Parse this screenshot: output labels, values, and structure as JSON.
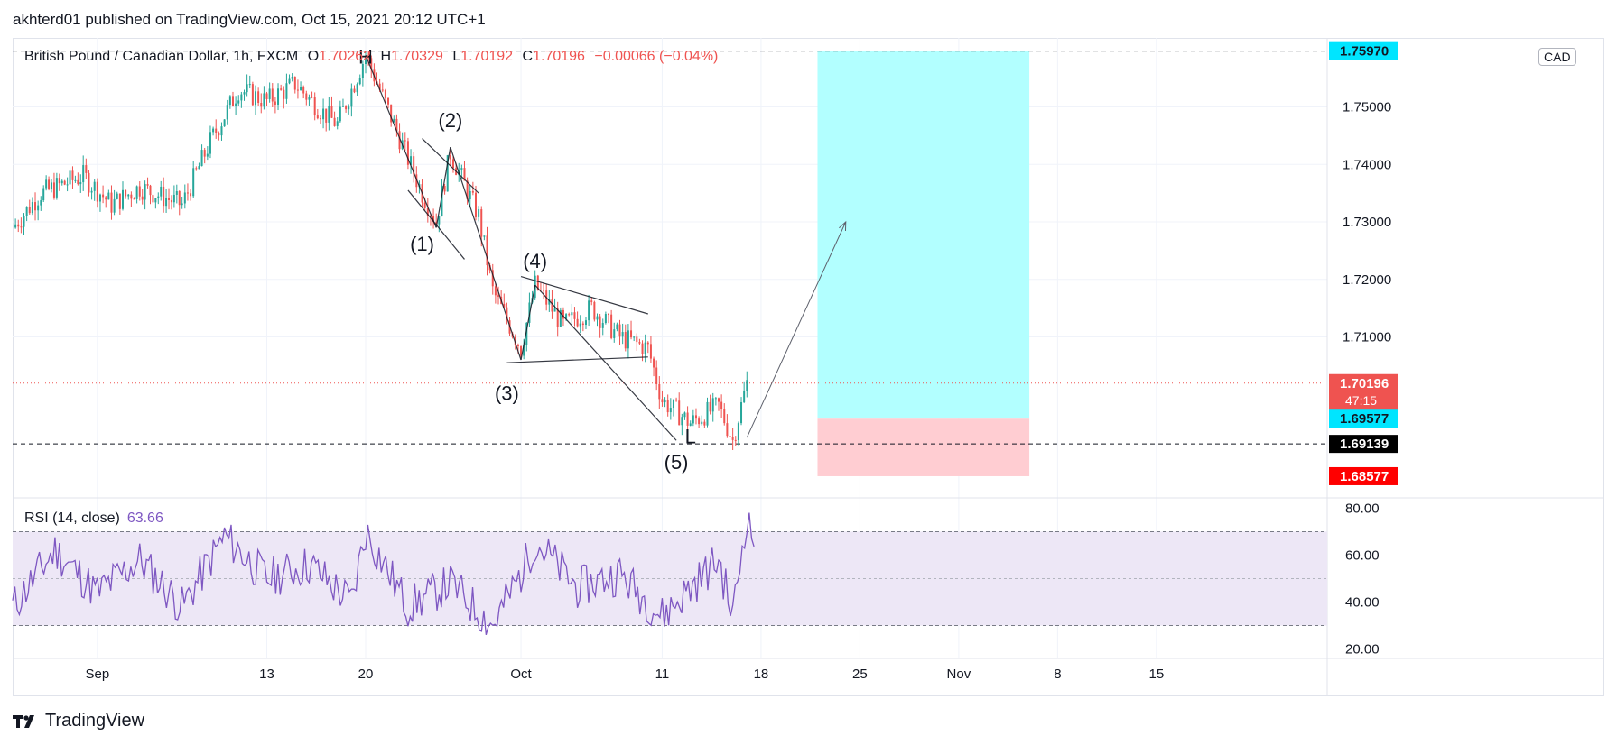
{
  "header": {
    "published": "akhterd01 published on TradingView.com, Oct 15, 2021 20:12 UTC+1"
  },
  "legend": {
    "symbol": "British Pound / Canadian Dollar, 1h, FXCM",
    "o_label": "O",
    "o_value": "1.70262",
    "h_label": "H",
    "h_value": "1.70329",
    "l_label": "L",
    "l_value": "1.70192",
    "c_label": "C",
    "c_value": "1.70196",
    "change": "−0.00066 (−0.04%)"
  },
  "currency_badge": "CAD",
  "footer": {
    "brand": "TradingView"
  },
  "colors": {
    "up": "#26a69a",
    "down": "#ef5350",
    "rsi": "#7e57c2",
    "rsi_band": "#ede7f6",
    "target": "#b2ffff",
    "stop": "#ffcdd2",
    "price_line": "#ef5350"
  },
  "chart_data": [
    {
      "type": "candlestick",
      "title": "British Pound / Canadian Dollar, 1h, FXCM",
      "ylim": [
        1.682,
        1.762
      ],
      "y_ticks": [
        1.75,
        1.74,
        1.73,
        1.72,
        1.71
      ],
      "y_tick_labels": [
        "1.75000",
        "1.74000",
        "1.73000",
        "1.72000",
        "1.71000"
      ],
      "x_tick_labels": [
        "Sep",
        "13",
        "20",
        "Oct",
        "11",
        "18",
        "25",
        "Nov",
        "8",
        "15"
      ],
      "price_path": [
        {
          "date": "2021-08-26",
          "close": 1.729
        },
        {
          "date": "2021-08-28",
          "close": 1.735
        },
        {
          "date": "2021-08-31",
          "close": 1.738
        },
        {
          "date": "2021-09-02",
          "close": 1.733
        },
        {
          "date": "2021-09-04",
          "close": 1.736
        },
        {
          "date": "2021-09-07",
          "close": 1.733
        },
        {
          "date": "2021-09-09",
          "close": 1.744
        },
        {
          "date": "2021-09-11",
          "close": 1.753
        },
        {
          "date": "2021-09-13",
          "close": 1.751
        },
        {
          "date": "2021-09-15",
          "close": 1.754
        },
        {
          "date": "2021-09-17",
          "close": 1.749
        },
        {
          "date": "2021-09-18",
          "close": 1.747
        },
        {
          "date": "2021-09-20",
          "close": 1.759
        },
        {
          "date": "2021-09-22",
          "close": 1.747
        },
        {
          "date": "2021-09-24",
          "close": 1.735
        },
        {
          "date": "2021-09-25",
          "close": 1.73
        },
        {
          "date": "2021-09-26",
          "close": 1.742
        },
        {
          "date": "2021-09-28",
          "close": 1.731
        },
        {
          "date": "2021-09-29",
          "close": 1.718
        },
        {
          "date": "2021-10-01",
          "close": 1.708
        },
        {
          "date": "2021-10-02",
          "close": 1.719
        },
        {
          "date": "2021-10-04",
          "close": 1.712
        },
        {
          "date": "2021-10-06",
          "close": 1.715
        },
        {
          "date": "2021-10-08",
          "close": 1.71
        },
        {
          "date": "2021-10-10",
          "close": 1.708
        },
        {
          "date": "2021-10-11",
          "close": 1.699
        },
        {
          "date": "2021-10-13",
          "close": 1.695
        },
        {
          "date": "2021-10-15",
          "close": 1.698
        },
        {
          "date": "2021-10-16",
          "close": 1.692
        },
        {
          "date": "2021-10-17",
          "close": 1.702
        }
      ],
      "last_price": 1.70196,
      "axis_labels": [
        {
          "value": "1.75970",
          "price": 1.7597,
          "bg": "#00e5ff",
          "fg": "#131722"
        },
        {
          "value": "1.70196",
          "price": 1.70196,
          "bg": "#ef5350",
          "fg": "#ffffff",
          "sub": "47:15"
        },
        {
          "value": "1.69577",
          "price": 1.69577,
          "bg": "#00e5ff",
          "fg": "#131722"
        },
        {
          "value": "1.69139",
          "price": 1.69139,
          "bg": "#000000",
          "fg": "#ffffff"
        },
        {
          "value": "1.68577",
          "price": 1.68577,
          "bg": "#ff0000",
          "fg": "#ffffff"
        }
      ],
      "horizontal_levels": [
        1.7597,
        1.6914
      ],
      "position": {
        "start": "2021-10-22",
        "end": "2021-11-06",
        "entry": 1.69577,
        "target": 1.7597,
        "stop": 1.68577
      },
      "projection_arrow": {
        "from": {
          "date": "2021-10-17",
          "price": 1.6925
        },
        "to": {
          "date": "2021-10-24",
          "price": 1.73
        }
      },
      "annotations": [
        {
          "text": "H",
          "date": "2021-09-20",
          "price": 1.7575
        },
        {
          "text": "(2)",
          "date": "2021-09-26",
          "price": 1.7465
        },
        {
          "text": "(1)",
          "date": "2021-09-24",
          "price": 1.725
        },
        {
          "text": "(4)",
          "date": "2021-10-02",
          "price": 1.722
        },
        {
          "text": "(3)",
          "date": "2021-09-30",
          "price": 1.699
        },
        {
          "text": "(5)",
          "date": "2021-10-12",
          "price": 1.687
        },
        {
          "text": "L",
          "date": "2021-10-13",
          "price": 1.6915
        }
      ],
      "trendlines": [
        {
          "from": {
            "date": "2021-09-24",
            "price": 1.7445
          },
          "to": {
            "date": "2021-09-28",
            "price": 1.735
          }
        },
        {
          "from": {
            "date": "2021-09-23",
            "price": 1.7355
          },
          "to": {
            "date": "2021-09-27",
            "price": 1.7235
          }
        },
        {
          "from": {
            "date": "2021-10-01",
            "price": 1.7205
          },
          "to": {
            "date": "2021-10-10",
            "price": 1.714
          }
        },
        {
          "from": {
            "date": "2021-09-30",
            "price": 1.7055
          },
          "to": {
            "date": "2021-10-10",
            "price": 1.7065
          }
        },
        {
          "from": {
            "date": "2021-09-20",
            "price": 1.759
          },
          "to": {
            "date": "2021-09-25",
            "price": 1.729
          }
        },
        {
          "from": {
            "date": "2021-09-25",
            "price": 1.729
          },
          "to": {
            "date": "2021-09-26",
            "price": 1.743
          }
        },
        {
          "from": {
            "date": "2021-09-26",
            "price": 1.743
          },
          "to": {
            "date": "2021-10-01",
            "price": 1.706
          }
        },
        {
          "from": {
            "date": "2021-10-01",
            "price": 1.706
          },
          "to": {
            "date": "2021-10-02",
            "price": 1.719
          }
        },
        {
          "from": {
            "date": "2021-10-02",
            "price": 1.719
          },
          "to": {
            "date": "2021-10-12",
            "price": 1.692
          }
        }
      ]
    },
    {
      "type": "line",
      "title": "RSI (14, close)",
      "series": [
        {
          "name": "RSI (14, close)",
          "last": "63.66"
        }
      ],
      "ylim": [
        16,
        84
      ],
      "y_ticks": [
        80,
        60,
        40,
        20
      ],
      "y_tick_labels": [
        "80.00",
        "60.00",
        "40.00",
        "20.00"
      ],
      "band": [
        30,
        70
      ],
      "midline": 50,
      "path": [
        {
          "date": "2021-08-26",
          "value": 38
        },
        {
          "date": "2021-08-29",
          "value": 62
        },
        {
          "date": "2021-09-01",
          "value": 44
        },
        {
          "date": "2021-09-04",
          "value": 58
        },
        {
          "date": "2021-09-07",
          "value": 38
        },
        {
          "date": "2021-09-10",
          "value": 68
        },
        {
          "date": "2021-09-13",
          "value": 50
        },
        {
          "date": "2021-09-16",
          "value": 56
        },
        {
          "date": "2021-09-19",
          "value": 40
        },
        {
          "date": "2021-09-20",
          "value": 70
        },
        {
          "date": "2021-09-23",
          "value": 38
        },
        {
          "date": "2021-09-26",
          "value": 48
        },
        {
          "date": "2021-09-29",
          "value": 30
        },
        {
          "date": "2021-10-01",
          "value": 52
        },
        {
          "date": "2021-10-02",
          "value": 66
        },
        {
          "date": "2021-10-05",
          "value": 46
        },
        {
          "date": "2021-10-08",
          "value": 52
        },
        {
          "date": "2021-10-11",
          "value": 34
        },
        {
          "date": "2021-10-13",
          "value": 46
        },
        {
          "date": "2021-10-15",
          "value": 58
        },
        {
          "date": "2021-10-16",
          "value": 34
        },
        {
          "date": "2021-10-17",
          "value": 78
        },
        {
          "date": "2021-10-17T12",
          "value": 63.66
        }
      ]
    }
  ]
}
